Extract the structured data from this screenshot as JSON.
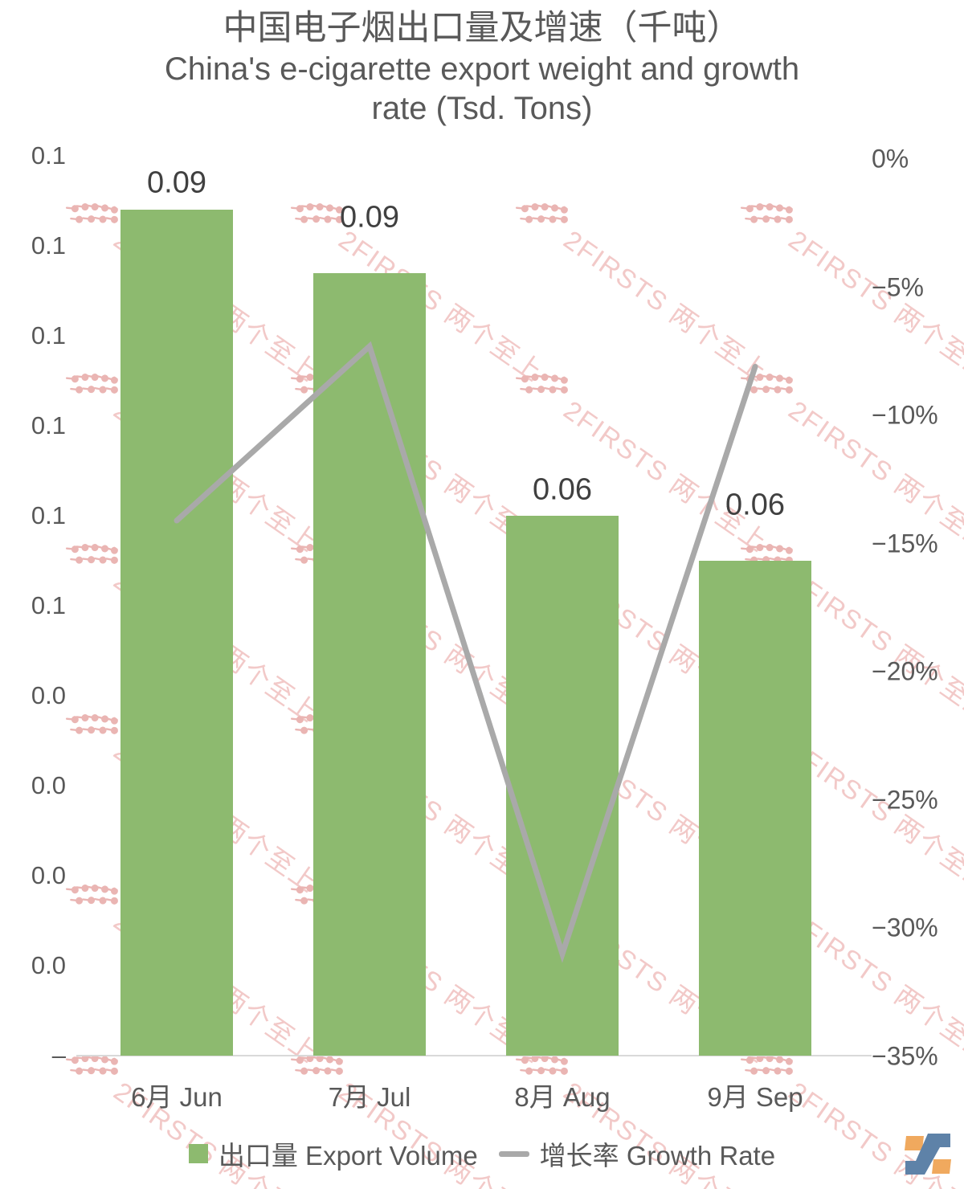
{
  "title": {
    "zh": "中国电子烟出口量及增速（千吨）",
    "en_line1": "China's e-cigarette export weight and growth",
    "en_line2": "rate (Tsd. Tons)"
  },
  "chart_data": {
    "type": "combo-bar-line",
    "categories": [
      "6月 Jun",
      "7月 Jul",
      "8月 Aug",
      "9月 Sep"
    ],
    "series": [
      {
        "name": "出口量 Export Volume",
        "type": "bar",
        "axis": "left",
        "unit": "千吨 Tsd. Tons",
        "values": [
          0.094,
          0.087,
          0.06,
          0.055
        ],
        "data_labels": [
          "0.09",
          "0.09",
          "0.06",
          "0.06"
        ],
        "color": "#8dba6f"
      },
      {
        "name": "增长率 Growth Rate",
        "type": "line",
        "axis": "right",
        "unit": "%",
        "values": [
          -14.1,
          -7.3,
          -31.0,
          -8.1
        ],
        "color": "#a9a9a9"
      }
    ],
    "left_axis": {
      "min": 0,
      "max": 0.1,
      "tick_labels": [
        "0.1",
        "0.1",
        "0.1",
        "0.1",
        "0.1",
        "0.1",
        "0.0",
        "0.0",
        "0.0",
        "0.0",
        "–"
      ]
    },
    "right_axis": {
      "min": -35,
      "max": 0,
      "tick_labels": [
        "0%",
        "−5%",
        "−10%",
        "−15%",
        "−20%",
        "−25%",
        "−30%",
        "−35%"
      ]
    },
    "grid": "none",
    "legend_position": "bottom"
  },
  "legend": {
    "items": [
      {
        "label": "出口量 Export Volume",
        "swatch": "square",
        "color": "#8dba6f"
      },
      {
        "label": "增长率 Growth Rate",
        "swatch": "line",
        "color": "#a9a9a9"
      }
    ]
  },
  "watermark": {
    "text": "2FIRSTS 两个至上",
    "color": "#f2c9c8"
  },
  "logo": {
    "name": "2FIRSTS",
    "blue": "#5e82a8",
    "orange": "#f0a95e"
  },
  "colors": {
    "bar_green": "#8dba6f",
    "line_gray": "#a9a9a9",
    "axis_text": "#595959",
    "data_label": "#404040",
    "baseline": "#d9d9d9",
    "watermark_pink": "#f2c9c8",
    "background": "#ffffff"
  }
}
